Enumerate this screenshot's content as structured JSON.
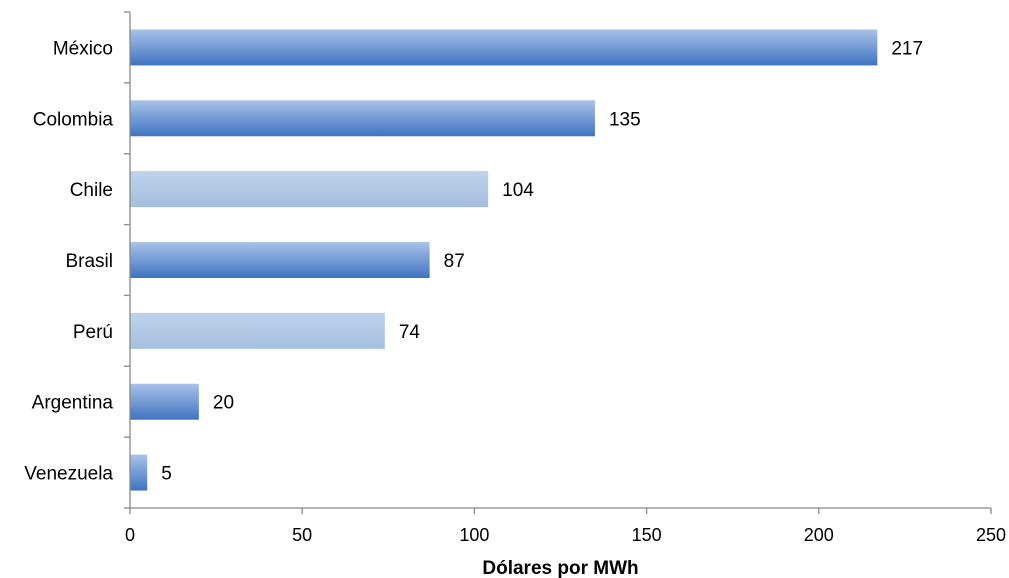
{
  "chart_data": {
    "type": "bar",
    "orientation": "horizontal",
    "title": "",
    "xlabel": "Dólares por MWh",
    "ylabel": "",
    "xlim": [
      0,
      250
    ],
    "xticks": [
      "0",
      "50",
      "100",
      "150",
      "200",
      "250"
    ],
    "grid": false,
    "categories": [
      "México",
      "Colombia",
      "Chile",
      "Brasil",
      "Perú",
      "Argentina",
      "Venezuela"
    ],
    "values": [
      217,
      135,
      104,
      87,
      74,
      20,
      5
    ],
    "value_labels": [
      "217",
      "135",
      "104",
      "87",
      "74",
      "20",
      "5"
    ],
    "bar_styles": [
      "dark",
      "dark",
      "light",
      "dark",
      "light",
      "dark",
      "dark"
    ],
    "colors": {
      "dark_top": "#a9c3e9",
      "dark_bottom": "#3f73c1",
      "light_top": "#bed2ea",
      "light_bottom": "#a6bfdf",
      "axis": "#888888"
    }
  }
}
